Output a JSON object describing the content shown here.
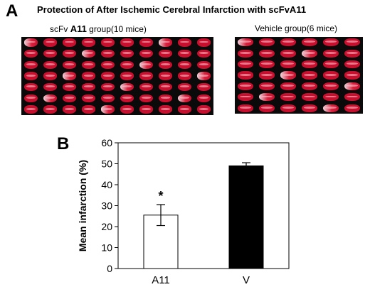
{
  "figure": {
    "panel_a_letter": "A",
    "panel_b_letter": "B",
    "title": "Protection of After Ischemic Cerebral Infarction with scFvA11",
    "group_left_prefix": "scFv",
    "group_left_bold": "A11",
    "group_left_suffix": "group(10 mice)",
    "group_right": "Vehicle group(6 mice)"
  },
  "photo_grid": {
    "left_columns": 10,
    "right_columns": 6,
    "rows": 7,
    "stain_color": "#c8102e",
    "board_color": "#0a0a0a"
  },
  "chart_data": {
    "type": "bar",
    "categories": [
      "A11",
      "V"
    ],
    "values": [
      25.5,
      49
    ],
    "error": [
      5,
      1.5
    ],
    "bar_colors": [
      "#ffffff",
      "#000000"
    ],
    "significance": [
      "*",
      ""
    ],
    "ylabel": "Mean infarction (%)",
    "ylim": [
      0,
      60
    ],
    "yticks": [
      0,
      10,
      20,
      30,
      40,
      50,
      60
    ],
    "grid": false
  }
}
